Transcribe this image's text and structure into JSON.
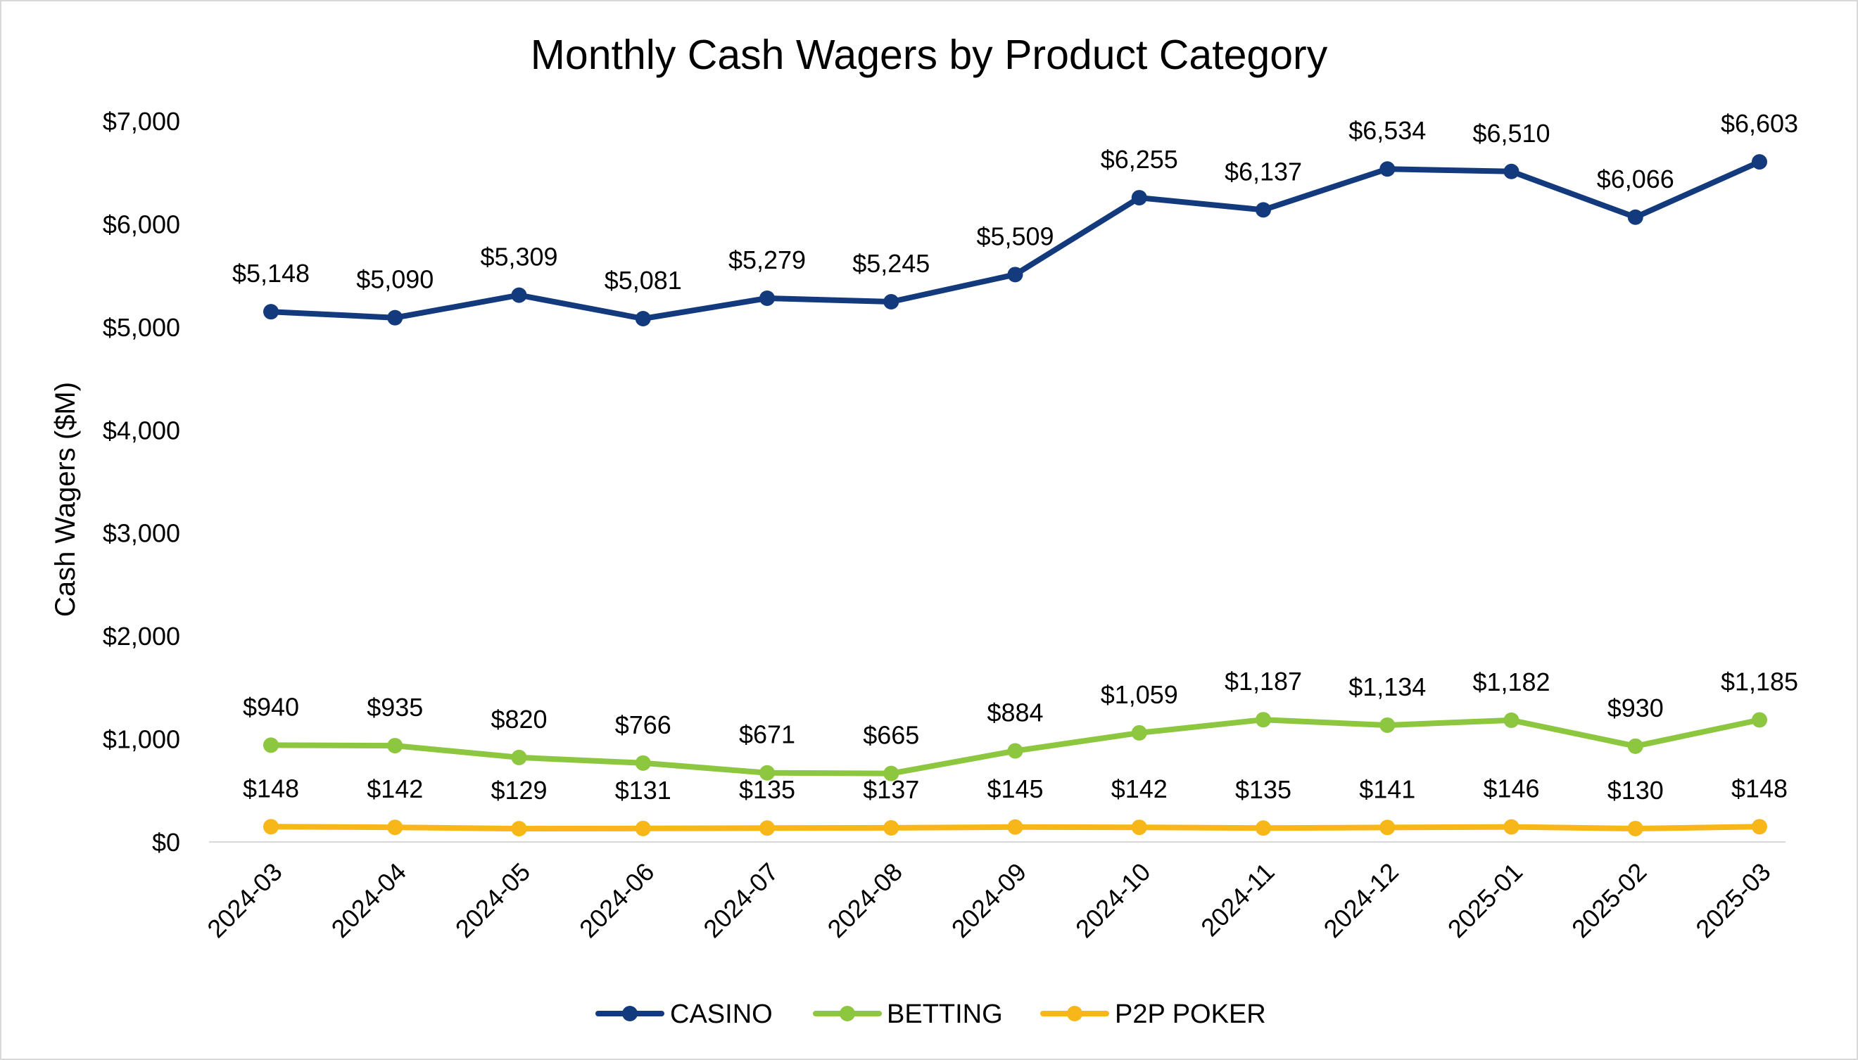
{
  "chart_data": {
    "type": "line",
    "title": "Monthly Cash Wagers by Product Category",
    "xlabel": "",
    "ylabel": "Cash Wagers ($M)",
    "ylim": [
      0,
      7000
    ],
    "yticks": [
      0,
      1000,
      2000,
      3000,
      4000,
      5000,
      6000,
      7000
    ],
    "ytick_labels": [
      "$0",
      "$1,000",
      "$2,000",
      "$3,000",
      "$4,000",
      "$5,000",
      "$6,000",
      "$7,000"
    ],
    "grid": false,
    "legend_position": "bottom-center",
    "categories": [
      "2024-03",
      "2024-04",
      "2024-05",
      "2024-06",
      "2024-07",
      "2024-08",
      "2024-09",
      "2024-10",
      "2024-11",
      "2024-12",
      "2025-01",
      "2025-02",
      "2025-03"
    ],
    "series": [
      {
        "name": "CASINO",
        "color": "#123a7c",
        "values": [
          5148,
          5090,
          5309,
          5081,
          5279,
          5245,
          5509,
          6255,
          6137,
          6534,
          6510,
          6066,
          6603
        ],
        "labels": [
          "$5,148",
          "$5,090",
          "$5,309",
          "$5,081",
          "$5,279",
          "$5,245",
          "$5,509",
          "$6,255",
          "$6,137",
          "$6,534",
          "$6,510",
          "$6,066",
          "$6,603"
        ]
      },
      {
        "name": "BETTING",
        "color": "#8dc63f",
        "values": [
          940,
          935,
          820,
          766,
          671,
          665,
          884,
          1059,
          1187,
          1134,
          1182,
          930,
          1185
        ],
        "labels": [
          "$940",
          "$935",
          "$820",
          "$766",
          "$671",
          "$665",
          "$884",
          "$1,059",
          "$1,187",
          "$1,134",
          "$1,182",
          "$930",
          "$1,185"
        ]
      },
      {
        "name": "P2P POKER",
        "color": "#f7b718",
        "values": [
          148,
          142,
          129,
          131,
          135,
          137,
          145,
          142,
          135,
          141,
          146,
          130,
          148
        ],
        "labels": [
          "$148",
          "$142",
          "$129",
          "$131",
          "$135",
          "$137",
          "$145",
          "$142",
          "$135",
          "$141",
          "$146",
          "$130",
          "$148"
        ]
      }
    ]
  }
}
